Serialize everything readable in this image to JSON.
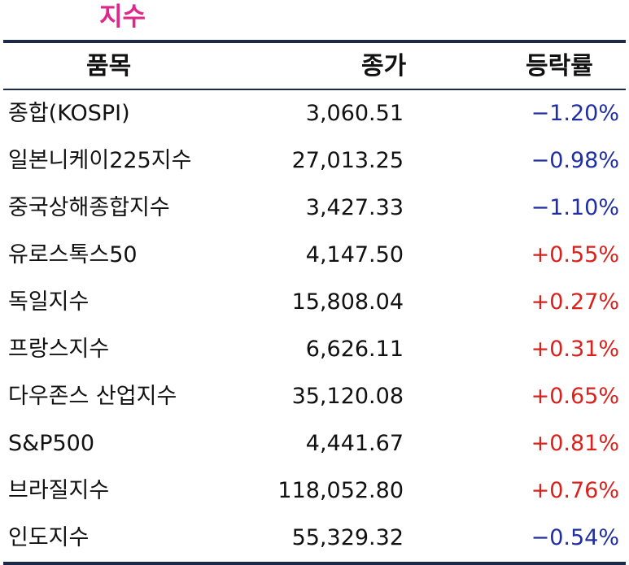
{
  "title": "지수",
  "columns": {
    "item": "품목",
    "close": "종가",
    "change": "등락률"
  },
  "colors": {
    "title": "#e0288a",
    "negative": "#1f2fa3",
    "positive": "#d9211d",
    "rule": "#1b2a4a"
  },
  "rows": [
    {
      "name": "종합(KOSPI)",
      "close": "3,060.51",
      "change": "−1.20%",
      "direction": "neg"
    },
    {
      "name": "일본니케이225지수",
      "close": "27,013.25",
      "change": "−0.98%",
      "direction": "neg"
    },
    {
      "name": "중국상해종합지수",
      "close": "3,427.33",
      "change": "−1.10%",
      "direction": "neg"
    },
    {
      "name": "유로스톡스50",
      "close": "4,147.50",
      "change": "+0.55%",
      "direction": "pos"
    },
    {
      "name": "독일지수",
      "close": "15,808.04",
      "change": "+0.27%",
      "direction": "pos"
    },
    {
      "name": "프랑스지수",
      "close": "6,626.11",
      "change": "+0.31%",
      "direction": "pos"
    },
    {
      "name": "다우존스 산업지수",
      "close": "35,120.08",
      "change": "+0.65%",
      "direction": "pos"
    },
    {
      "name": "S&P500",
      "close": "4,441.67",
      "change": "+0.81%",
      "direction": "pos"
    },
    {
      "name": "브라질지수",
      "close": "118,052.80",
      "change": "+0.76%",
      "direction": "pos"
    },
    {
      "name": "인도지수",
      "close": "55,329.32",
      "change": "−0.54%",
      "direction": "neg"
    }
  ]
}
